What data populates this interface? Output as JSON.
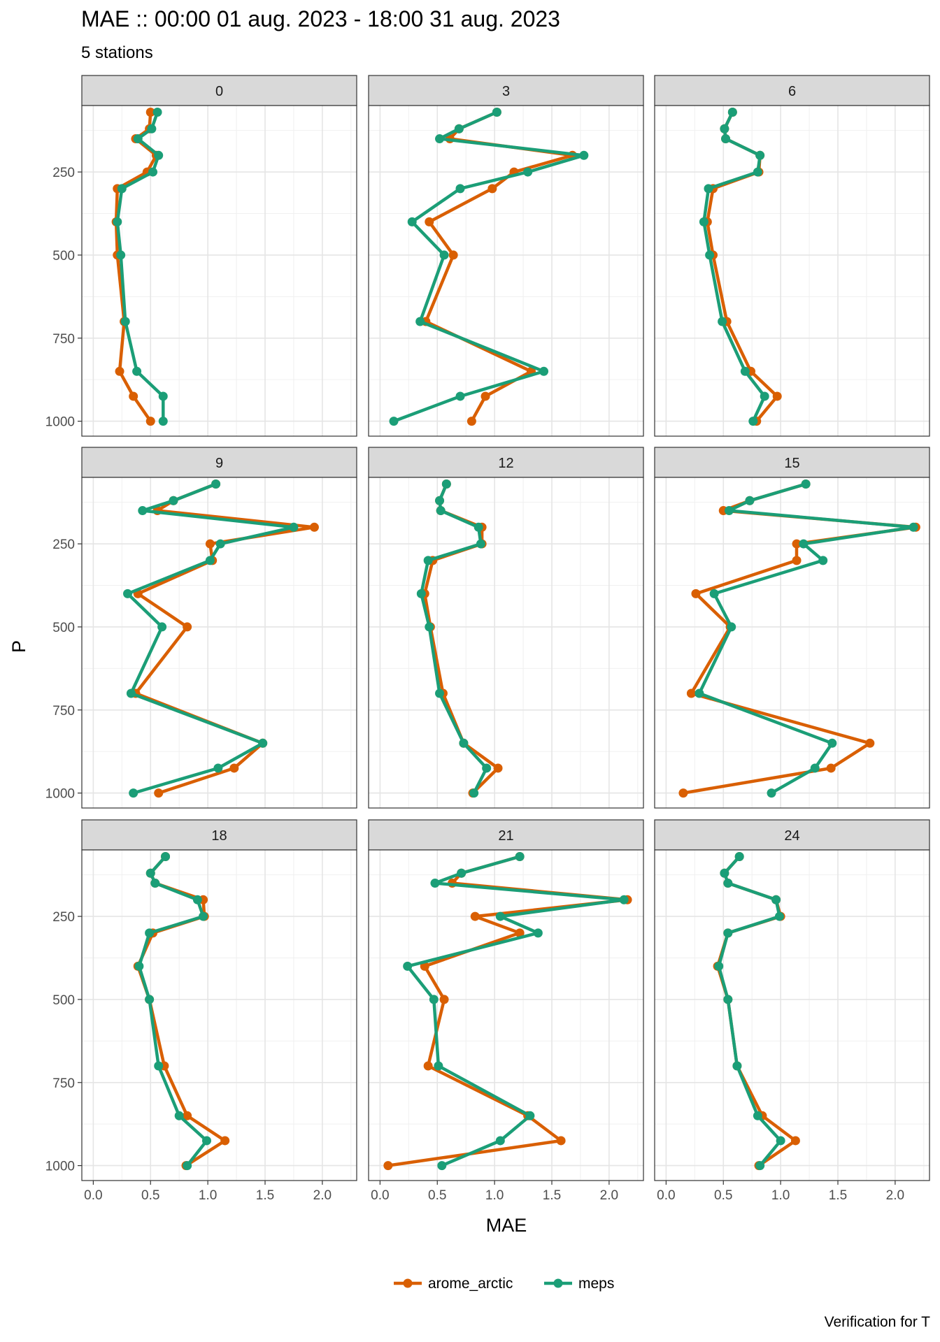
{
  "chart_data": {
    "type": "line",
    "title": "MAE :: 00:00 01 aug. 2023 - 18:00 31 aug. 2023",
    "subtitle": "5 stations",
    "xlabel": "MAE",
    "ylabel": "P",
    "caption": "Verification for T",
    "xlim": [
      -0.1,
      2.3
    ],
    "ylim": [
      1045,
      50
    ],
    "y_reversed": true,
    "x_ticks": [
      "0.0",
      "0.5",
      "1.0",
      "1.5",
      "2.0"
    ],
    "x_tick_values": [
      0,
      0.5,
      1,
      1.5,
      2
    ],
    "y_ticks": [
      "250",
      "500",
      "750",
      "1000"
    ],
    "y_tick_values": [
      250,
      500,
      750,
      1000
    ],
    "grid": true,
    "legend_position": "bottom",
    "levels": [
      70,
      120,
      150,
      200,
      250,
      300,
      400,
      500,
      700,
      850,
      925,
      1000
    ],
    "series_meta": [
      {
        "name": "arome_arctic",
        "color": "#d95f02"
      },
      {
        "name": "meps",
        "color": "#1b9e77"
      }
    ],
    "panels": [
      {
        "label": "0",
        "arome_arctic": [
          0.5,
          0.49,
          0.37,
          0.55,
          0.47,
          0.21,
          0.2,
          0.21,
          0.27,
          0.23,
          0.35,
          0.5
        ],
        "meps": [
          0.56,
          0.51,
          0.39,
          0.57,
          0.52,
          0.25,
          0.21,
          0.24,
          0.28,
          0.38,
          0.61,
          0.61
        ]
      },
      {
        "label": "3",
        "arome_arctic": [
          1.02,
          0.69,
          0.61,
          1.68,
          1.17,
          0.98,
          0.43,
          0.64,
          0.4,
          1.32,
          0.92,
          0.8
        ],
        "meps": [
          1.02,
          0.69,
          0.52,
          1.78,
          1.29,
          0.7,
          0.28,
          0.56,
          0.35,
          1.43,
          0.7,
          0.12
        ]
      },
      {
        "label": "6",
        "arome_arctic": [
          0.58,
          0.51,
          0.52,
          0.82,
          0.81,
          0.41,
          0.36,
          0.41,
          0.53,
          0.74,
          0.97,
          0.79
        ],
        "meps": [
          0.58,
          0.51,
          0.52,
          0.82,
          0.8,
          0.37,
          0.33,
          0.38,
          0.49,
          0.69,
          0.86,
          0.76
        ]
      },
      {
        "label": "9",
        "arome_arctic": [
          1.07,
          0.7,
          0.56,
          1.93,
          1.02,
          1.04,
          0.39,
          0.82,
          0.37,
          1.48,
          1.23,
          0.57
        ],
        "meps": [
          1.07,
          0.7,
          0.43,
          1.75,
          1.11,
          1.02,
          0.3,
          0.6,
          0.33,
          1.48,
          1.09,
          0.35
        ]
      },
      {
        "label": "12",
        "arome_arctic": [
          0.58,
          0.52,
          0.53,
          0.89,
          0.89,
          0.46,
          0.39,
          0.44,
          0.55,
          0.73,
          1.03,
          0.81
        ],
        "meps": [
          0.58,
          0.52,
          0.53,
          0.86,
          0.88,
          0.42,
          0.36,
          0.43,
          0.52,
          0.73,
          0.93,
          0.82
        ]
      },
      {
        "label": "15",
        "arome_arctic": [
          1.22,
          0.73,
          0.5,
          2.18,
          1.14,
          1.14,
          0.26,
          0.56,
          0.22,
          1.78,
          1.44,
          0.15
        ],
        "meps": [
          1.22,
          0.73,
          0.55,
          2.16,
          1.2,
          1.37,
          0.42,
          0.57,
          0.29,
          1.45,
          1.3,
          0.92
        ]
      },
      {
        "label": "18",
        "arome_arctic": [
          0.63,
          0.5,
          0.54,
          0.96,
          0.97,
          0.52,
          0.39,
          0.49,
          0.62,
          0.82,
          1.15,
          0.81
        ],
        "meps": [
          0.63,
          0.5,
          0.54,
          0.91,
          0.96,
          0.49,
          0.4,
          0.49,
          0.57,
          0.75,
          0.99,
          0.82
        ]
      },
      {
        "label": "21",
        "arome_arctic": [
          1.22,
          0.71,
          0.63,
          2.16,
          0.83,
          1.22,
          0.39,
          0.56,
          0.42,
          1.29,
          1.58,
          0.07
        ],
        "meps": [
          1.22,
          0.71,
          0.48,
          2.13,
          1.05,
          1.38,
          0.24,
          0.47,
          0.51,
          1.31,
          1.05,
          0.54
        ]
      },
      {
        "label": "24",
        "arome_arctic": [
          0.64,
          0.51,
          0.54,
          0.96,
          1.0,
          0.54,
          0.45,
          0.54,
          0.62,
          0.84,
          1.13,
          0.81
        ],
        "meps": [
          0.64,
          0.51,
          0.54,
          0.96,
          0.99,
          0.54,
          0.46,
          0.54,
          0.62,
          0.8,
          1.0,
          0.82
        ]
      }
    ]
  }
}
